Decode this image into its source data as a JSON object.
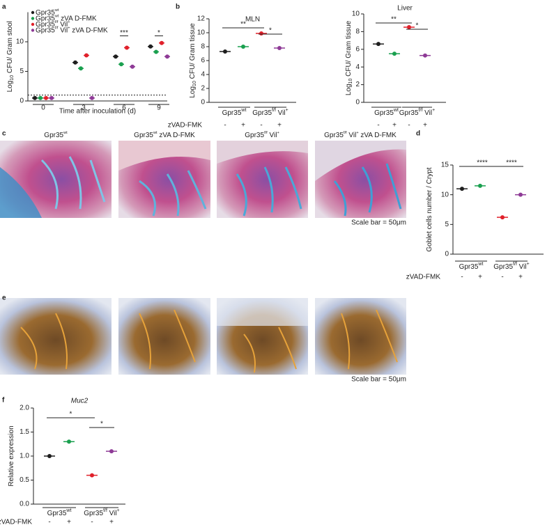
{
  "panel_labels": [
    "a",
    "b",
    "c",
    "d",
    "e",
    "f"
  ],
  "histology": {
    "c": {
      "titles": [
        [
          "Gpr35",
          "wt"
        ],
        [
          "Gpr35",
          "wt",
          " zVA D-FMK"
        ],
        [
          "Gpr35",
          "f/f",
          " Vil",
          "+"
        ],
        [
          "Gpr35",
          "f/f",
          " Vil",
          "+",
          " zVA D-FMK"
        ]
      ],
      "scale_bar": "Scale bar = 50μm"
    },
    "e": {
      "scale_bar": "Scale bar = 50μm"
    }
  },
  "chart_data": [
    {
      "type": "grouped-dot",
      "ylabel": [
        "Log",
        "10",
        " CFU/ Gram stool"
      ],
      "xlabel": "Time after inoculation (d)",
      "categories": [
        "0",
        "3",
        "6",
        "9"
      ],
      "series": [
        {
          "name": [
            "Gpr35",
            "wt"
          ],
          "color": "#1e1e1e",
          "values": [
            0.5,
            6.5,
            7.5,
            9.2
          ]
        },
        {
          "name": [
            "Gpr35",
            "wt",
            " zVA D-FMK"
          ],
          "color": "#1aa04f",
          "values": [
            0.5,
            5.5,
            6.2,
            8.3
          ]
        },
        {
          "name": [
            "Gpr35",
            "f/f",
            " Vil",
            "+"
          ],
          "color": "#e0202a",
          "values": [
            0.5,
            7.7,
            9.0,
            9.8
          ]
        },
        {
          "name": [
            "Gpr35",
            "f/f",
            " Vil",
            "+",
            " zVA D-FMK"
          ],
          "color": "#8e3a96",
          "values": [
            0.5,
            0.5,
            5.8,
            7.5
          ]
        }
      ],
      "ylim": [
        0,
        15
      ],
      "yticks": [
        0,
        5,
        10
      ],
      "hline": 1,
      "annotations": [
        "***",
        "*"
      ]
    },
    {
      "type": "dot",
      "title": "MLN",
      "ylabel": [
        "Log",
        "10",
        " CFU/ Gram tissue"
      ],
      "group_labels": [
        [
          "Gpr35",
          "wt"
        ],
        [
          "Gpr35",
          "f/f",
          " Vil",
          "+"
        ]
      ],
      "treatment": {
        "label": "zVAD-FMK",
        "signs": [
          "-",
          "+",
          "-",
          "+"
        ]
      },
      "values": [
        7.3,
        8.0,
        9.9,
        7.8
      ],
      "colors": [
        "#1e1e1e",
        "#1aa04f",
        "#e0202a",
        "#8e3a96"
      ],
      "ylim": [
        0,
        12
      ],
      "yticks": [
        0,
        2,
        4,
        6,
        8,
        10,
        12
      ],
      "annotations": [
        "**",
        "*"
      ]
    },
    {
      "type": "dot",
      "title": "Liver",
      "ylabel": [
        "Log",
        "10",
        " CFU/ Gram tissue"
      ],
      "group_labels": [
        [
          "Gpr35",
          "wt"
        ],
        [
          "Gpr35",
          "f/f",
          " Vil",
          "+"
        ]
      ],
      "treatment": {
        "signs": [
          "-",
          "+",
          "-",
          "+"
        ]
      },
      "values": [
        6.6,
        5.5,
        8.5,
        5.3
      ],
      "colors": [
        "#1e1e1e",
        "#1aa04f",
        "#e0202a",
        "#8e3a96"
      ],
      "ylim": [
        0,
        10
      ],
      "yticks": [
        0,
        2,
        4,
        6,
        8,
        10
      ],
      "annotations": [
        "**",
        "*"
      ]
    },
    {
      "type": "dot",
      "ylabel": [
        "Goblet cells number / Crypt"
      ],
      "group_labels": [
        [
          "Gpr35",
          "wt"
        ],
        [
          "Gpr35",
          "f/f",
          " Vil",
          "+"
        ]
      ],
      "treatment": {
        "label": "zVAD-FMK",
        "signs": [
          "-",
          "+",
          "-",
          "+"
        ]
      },
      "values": [
        11.0,
        11.5,
        6.2,
        10.0
      ],
      "colors": [
        "#1e1e1e",
        "#1aa04f",
        "#e0202a",
        "#8e3a96"
      ],
      "ylim": [
        0,
        15
      ],
      "yticks": [
        0,
        5,
        10,
        15
      ],
      "annotations": [
        "****",
        "****"
      ]
    },
    {
      "type": "dot",
      "title": "Muc2",
      "ylabel": [
        "Relative expression"
      ],
      "group_labels": [
        [
          "Gpr35",
          "wt"
        ],
        [
          "Gpr35",
          "f/f",
          " Vil",
          "+"
        ]
      ],
      "treatment": {
        "label": "zVAD-FMK",
        "signs": [
          "-",
          "+",
          "-",
          "+"
        ]
      },
      "values": [
        1.0,
        1.3,
        0.6,
        1.1
      ],
      "colors": [
        "#1e1e1e",
        "#1aa04f",
        "#e0202a",
        "#8e3a96"
      ],
      "ylim": [
        0,
        2
      ],
      "yticks": [
        {
          "value": 0,
          "label": "0.0"
        },
        {
          "value": 0.5,
          "label": "0.5"
        },
        {
          "value": 1,
          "label": "1.0"
        },
        {
          "value": 1.5,
          "label": "1.5"
        },
        {
          "value": 2,
          "label": "2.0"
        }
      ],
      "annotations": [
        "*",
        "*"
      ]
    }
  ]
}
